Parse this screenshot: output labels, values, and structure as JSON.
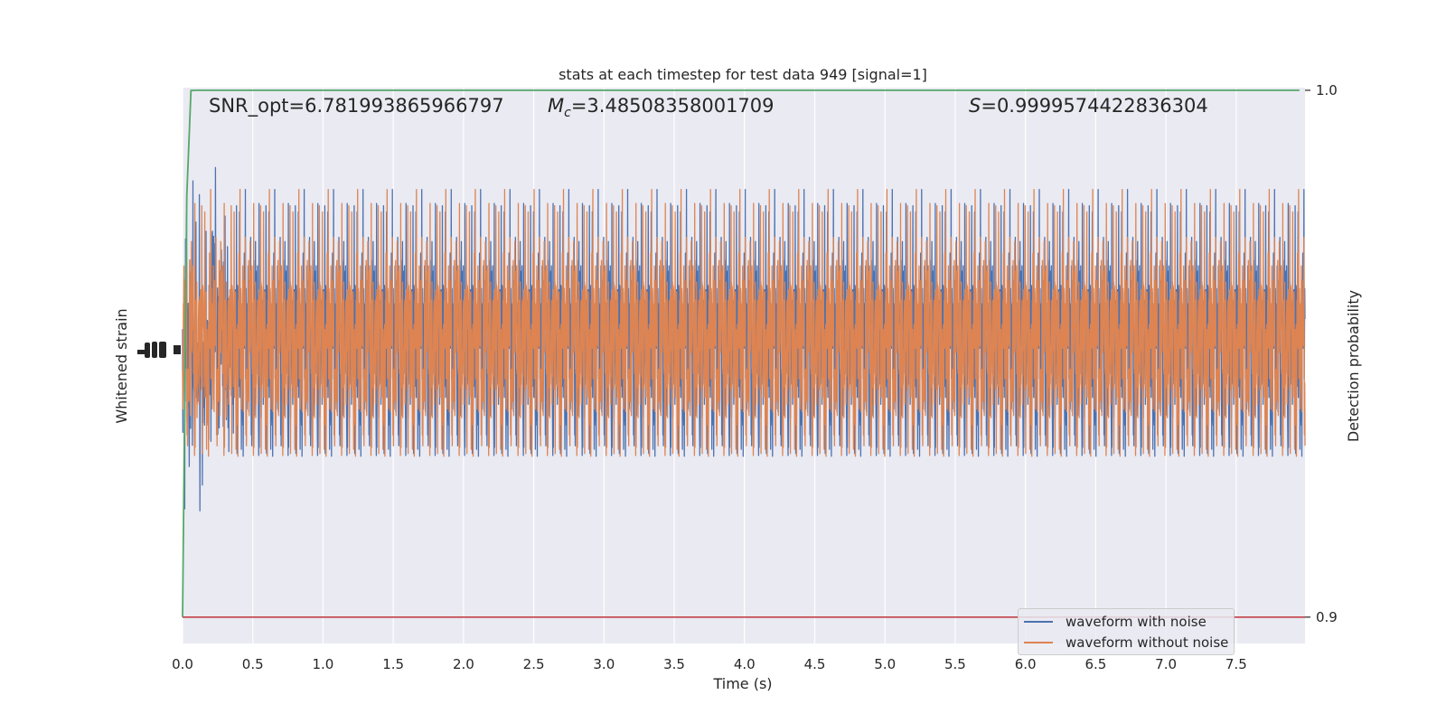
{
  "chart_data": {
    "type": "line",
    "title": "stats at each timestep for test data 949 [signal=1]",
    "xlabel": "Time (s)",
    "ylabel_left": "Whitened strain",
    "ylabel_right": "Detection probability",
    "xlim": [
      0.0,
      7.99
    ],
    "x_ticks": [
      0.0,
      0.5,
      1.0,
      1.5,
      2.0,
      2.5,
      3.0,
      3.5,
      4.0,
      4.5,
      5.0,
      5.5,
      6.0,
      6.5,
      7.0,
      7.5
    ],
    "x_tick_labels": [
      "0.0",
      "0.5",
      "1.0",
      "1.5",
      "2.0",
      "2.5",
      "3.0",
      "3.5",
      "4.0",
      "4.5",
      "5.0",
      "5.5",
      "6.0",
      "6.5",
      "7.0",
      "7.5"
    ],
    "y_right_lim": [
      0.895,
      1.0005
    ],
    "y_right_ticks": [
      0.9,
      1.0
    ],
    "y_right_tick_labels": [
      "0.9",
      "1.0"
    ],
    "grid": true,
    "legend_placement": "lower right",
    "annotations": {
      "snr": "SNR_opt=6.781993865966797",
      "mc_symbol": "M",
      "mc_sub": "c",
      "mc_value": "=3.48508358001709",
      "s_symbol": "S",
      "s_value": "=0.9999574422836304"
    },
    "series": [
      {
        "name": "waveform with noise",
        "color": "#4c72b0",
        "kind": "noise",
        "axis": "left"
      },
      {
        "name": "waveform without noise",
        "color": "#dd8452",
        "kind": "noise",
        "axis": "left"
      },
      {
        "name": "",
        "color": "#55a868",
        "axis": "right",
        "x": [
          0.0,
          0.03,
          0.06,
          0.1,
          4.7,
          4.71,
          4.72,
          7.95
        ],
        "y": [
          0.9,
          0.98,
          0.99996,
          1.0,
          1.0,
          1.0,
          1.0,
          1.0
        ]
      },
      {
        "name": "",
        "color": "#c44e52",
        "axis": "right",
        "x": [
          0.0,
          7.99
        ],
        "y": [
          0.9,
          0.9
        ]
      }
    ]
  }
}
